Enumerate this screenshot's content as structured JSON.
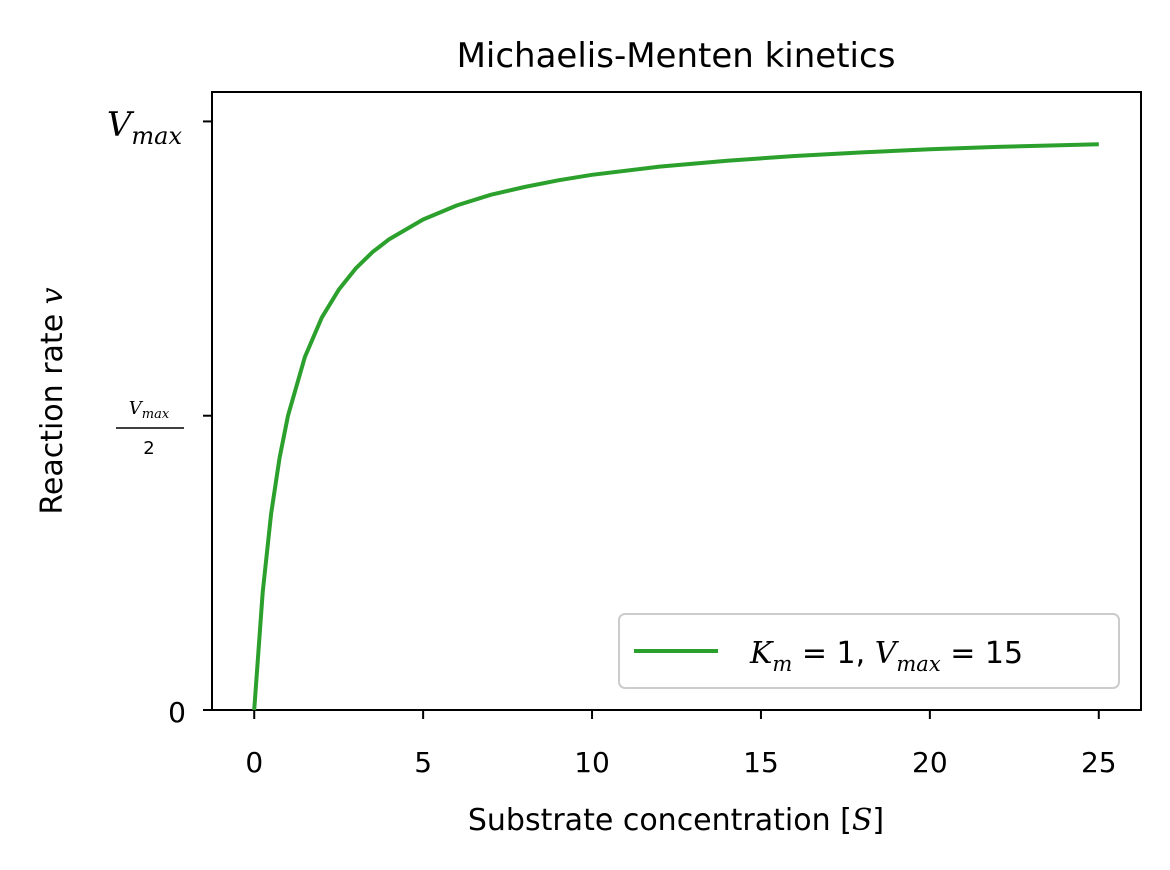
{
  "chart_data": {
    "type": "line",
    "title": "Michaelis-Menten kinetics",
    "xlabel": "Substrate concentration [S]",
    "ylabel": "Reaction rate v",
    "xlim": [
      -1.25,
      26.25
    ],
    "ylim": [
      0,
      15.75
    ],
    "x_ticks": [
      0,
      5,
      10,
      15,
      20,
      25
    ],
    "x_tick_labels": [
      "0",
      "5",
      "10",
      "15",
      "20",
      "25"
    ],
    "y_ticks": [
      0,
      7.5,
      15
    ],
    "y_tick_labels": [
      "0",
      "Vmax/2",
      "Vmax"
    ],
    "legend_position": "lower-right",
    "grid": false,
    "series": [
      {
        "name": "K_m = 1, V_max = 15",
        "color": "#2ca02c",
        "x": [
          0,
          0.25,
          0.5,
          0.75,
          1,
          1.5,
          2,
          2.5,
          3,
          3.5,
          4,
          5,
          6,
          7,
          8,
          9,
          10,
          12,
          14,
          16,
          18,
          20,
          22,
          25
        ],
        "y": [
          0,
          3.0,
          5.0,
          6.43,
          7.5,
          9.0,
          10.0,
          10.71,
          11.25,
          11.67,
          12.0,
          12.5,
          12.86,
          13.13,
          13.33,
          13.5,
          13.64,
          13.85,
          14.0,
          14.12,
          14.21,
          14.29,
          14.35,
          14.42
        ]
      }
    ]
  }
}
